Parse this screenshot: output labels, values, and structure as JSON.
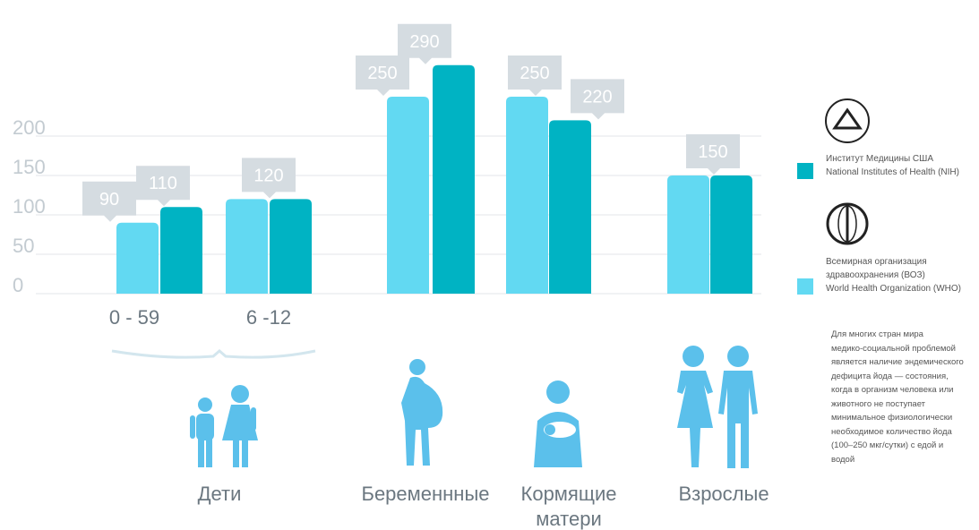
{
  "chart_data": {
    "type": "bar",
    "categories": [
      "0 - 59",
      "6 -12",
      null,
      null,
      null
    ],
    "series": [
      {
        "name": "Всемирная организация\nздравоохранения (ВОЗ)\nWorld Health Organization (WHO)",
        "color": "#62d9f2",
        "values": [
          90,
          120,
          250,
          250,
          150
        ],
        "value_labels": [
          "90",
          null,
          "250",
          "250",
          null
        ]
      },
      {
        "name": "Институт Медицины США\nNational Institutes of Health (NIH)",
        "color": "#00b3c3",
        "values": [
          110,
          120,
          290,
          220,
          150
        ],
        "value_labels": [
          "110",
          "120",
          "290",
          "220",
          "150"
        ]
      }
    ],
    "ylim": [
      0,
      300
    ],
    "yticks": [
      0,
      50,
      100,
      150,
      200
    ],
    "grid": true,
    "group_labels": [
      "Дети",
      "Беременнные",
      "Кормящие матери",
      "Взрослые"
    ],
    "note": "Для многих стран мира\nмедико-социальной  проблемой\nявляется наличие эндемического\nдефицита йода — состояния,\nкогда в организм человека или\nживотного не поступает\nминимальное физиологически\nнеобходимое количество йода\n(100–250 мкг/сутки) с едой и\nводой"
  }
}
